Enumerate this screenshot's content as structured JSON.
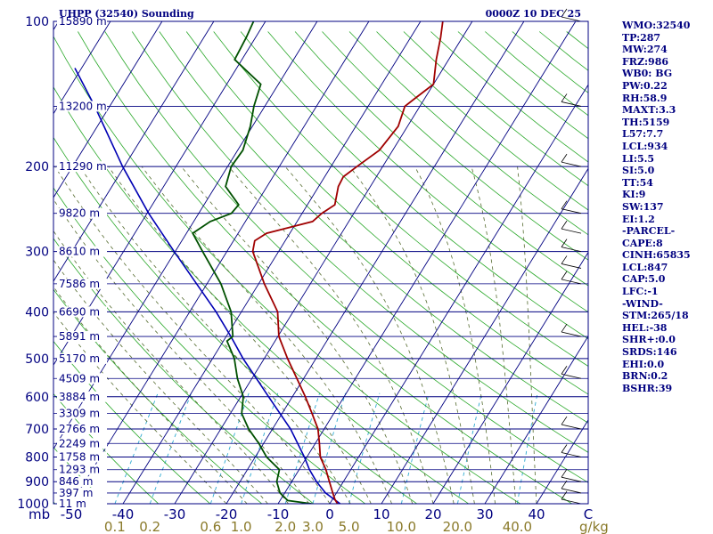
{
  "header": {
    "title": "UHPP (32540) Sounding",
    "time": "0000Z 10 DEC 25"
  },
  "units": {
    "pressure": "mb",
    "mixing_ratio": "g/kg"
  },
  "indices": [
    "WMO:32540",
    "TP:287",
    "MW:274",
    "FRZ:986",
    "WB0: BG",
    "PW:0.22",
    "RH:58.9",
    "MAXT:3.3",
    "TH:5159",
    "L57:7.7",
    "LCL:934",
    "LI:5.5",
    "SI:5.0",
    "TT:54",
    "KI:9",
    "SW:137",
    "EI:1.2",
    "-PARCEL-",
    "CAPE:8",
    "CINH:65835",
    "LCL:847",
    "CAP:5.0",
    "LFC:-1",
    "-WIND-",
    "STM:265/18",
    "HEL:-38",
    "SHR+:0.0",
    "SRDS:146",
    "EHI:0.0",
    "BRN:0.2",
    "BSHR:39"
  ],
  "chart_data": {
    "type": "skew-t log-p",
    "title": "UHPP (32540) Sounding",
    "pressure_levels": [
      100,
      200,
      300,
      400,
      500,
      600,
      700,
      800,
      900,
      1000
    ],
    "pressure_labels": [
      "100",
      "200",
      "300",
      "400",
      "500",
      "600",
      "700",
      "800",
      "900",
      "1000"
    ],
    "heights": [
      {
        "p": 100,
        "label": "15890 m"
      },
      {
        "p": 150,
        "label": "13200 m"
      },
      {
        "p": 200,
        "label": "11290 m"
      },
      {
        "p": 250,
        "label": "9820 m"
      },
      {
        "p": 300,
        "label": "8610 m"
      },
      {
        "p": 350,
        "label": "7586 m"
      },
      {
        "p": 400,
        "label": "6690 m"
      },
      {
        "p": 450,
        "label": "5891 m"
      },
      {
        "p": 500,
        "label": "5170 m"
      },
      {
        "p": 550,
        "label": "4509 m"
      },
      {
        "p": 600,
        "label": "3884 m"
      },
      {
        "p": 650,
        "label": "3309 m"
      },
      {
        "p": 700,
        "label": "2766 m"
      },
      {
        "p": 750,
        "label": "2249 m"
      },
      {
        "p": 800,
        "label": "1758 m"
      },
      {
        "p": 850,
        "label": "1293 m"
      },
      {
        "p": 900,
        "label": "846 m"
      },
      {
        "p": 950,
        "label": "397 m"
      },
      {
        "p": 1000,
        "label": "11 m"
      }
    ],
    "temperature_ticks": [
      -50,
      -40,
      -30,
      -20,
      -10,
      0,
      10,
      20,
      30,
      40
    ],
    "temperature_tick_labels": [
      "-50",
      "-40",
      "-30",
      "-20",
      "-10",
      "0",
      "10",
      "20",
      "30",
      "40",
      "C"
    ],
    "mixing_ratio_labels": [
      "0.1",
      "0.2",
      "0.6",
      "1.0",
      "2.0",
      "3.0",
      "5.0",
      "10.0",
      "20.0",
      "40.0"
    ],
    "mixing_ratios": [
      0.1,
      0.2,
      0.6,
      1.0,
      2.0,
      3.0,
      5.0,
      10.0,
      20.0,
      40.0
    ],
    "xlim": [
      -50,
      50
    ],
    "ylim": [
      1000,
      100
    ],
    "temperature": [
      {
        "p": 1000,
        "t": 1.5
      },
      {
        "p": 980,
        "t": 0.5
      },
      {
        "p": 950,
        "t": -0.7
      },
      {
        "p": 900,
        "t": -2.7
      },
      {
        "p": 850,
        "t": -4.8
      },
      {
        "p": 800,
        "t": -7.4
      },
      {
        "p": 750,
        "t": -9.2
      },
      {
        "p": 700,
        "t": -11.2
      },
      {
        "p": 650,
        "t": -14.2
      },
      {
        "p": 600,
        "t": -17.5
      },
      {
        "p": 550,
        "t": -21.3
      },
      {
        "p": 500,
        "t": -25.5
      },
      {
        "p": 450,
        "t": -29.8
      },
      {
        "p": 400,
        "t": -33.0
      },
      {
        "p": 350,
        "t": -38.9
      },
      {
        "p": 300,
        "t": -45.0
      },
      {
        "p": 285,
        "t": -45.9
      },
      {
        "p": 275,
        "t": -44.5
      },
      {
        "p": 260,
        "t": -37.0
      },
      {
        "p": 250,
        "t": -36.2
      },
      {
        "p": 240,
        "t": -34.7
      },
      {
        "p": 220,
        "t": -36.2
      },
      {
        "p": 210,
        "t": -36.4
      },
      {
        "p": 200,
        "t": -35.0
      },
      {
        "p": 185,
        "t": -32.6
      },
      {
        "p": 165,
        "t": -31.8
      },
      {
        "p": 150,
        "t": -32.9
      },
      {
        "p": 145,
        "t": -32.0
      },
      {
        "p": 135,
        "t": -30.0
      },
      {
        "p": 120,
        "t": -32.4
      },
      {
        "p": 108,
        "t": -34.2
      },
      {
        "p": 100,
        "t": -35.7
      }
    ],
    "dewpoint": [
      {
        "p": 1000,
        "t": -3.5
      },
      {
        "p": 985,
        "t": -8.5
      },
      {
        "p": 950,
        "t": -10.9
      },
      {
        "p": 900,
        "t": -12.9
      },
      {
        "p": 850,
        "t": -13.8
      },
      {
        "p": 800,
        "t": -17.8
      },
      {
        "p": 750,
        "t": -20.9
      },
      {
        "p": 700,
        "t": -24.6
      },
      {
        "p": 650,
        "t": -27.8
      },
      {
        "p": 600,
        "t": -29.5
      },
      {
        "p": 550,
        "t": -32.8
      },
      {
        "p": 500,
        "t": -35.8
      },
      {
        "p": 460,
        "t": -39.3
      },
      {
        "p": 450,
        "t": -38.7
      },
      {
        "p": 400,
        "t": -42.0
      },
      {
        "p": 350,
        "t": -47.3
      },
      {
        "p": 300,
        "t": -54.7
      },
      {
        "p": 275,
        "t": -58.8
      },
      {
        "p": 260,
        "t": -56.8
      },
      {
        "p": 250,
        "t": -53.7
      },
      {
        "p": 240,
        "t": -53.3
      },
      {
        "p": 220,
        "t": -58.0
      },
      {
        "p": 200,
        "t": -59.3
      },
      {
        "p": 185,
        "t": -59.0
      },
      {
        "p": 165,
        "t": -60.4
      },
      {
        "p": 150,
        "t": -62.1
      },
      {
        "p": 135,
        "t": -63.4
      },
      {
        "p": 120,
        "t": -71.4
      },
      {
        "p": 108,
        "t": -71.8
      },
      {
        "p": 100,
        "t": -72.3
      }
    ],
    "parcel": [
      {
        "p": 1000,
        "t": 2.0
      },
      {
        "p": 950,
        "t": -2.1
      },
      {
        "p": 900,
        "t": -5.2
      },
      {
        "p": 850,
        "t": -8.0
      },
      {
        "p": 800,
        "t": -10.5
      },
      {
        "p": 700,
        "t": -16.5
      },
      {
        "p": 600,
        "t": -24.6
      },
      {
        "p": 500,
        "t": -34.1
      },
      {
        "p": 450,
        "t": -39.1
      },
      {
        "p": 400,
        "t": -44.9
      },
      {
        "p": 350,
        "t": -52.0
      },
      {
        "p": 300,
        "t": -60.2
      },
      {
        "p": 250,
        "t": -69.7
      },
      {
        "p": 200,
        "t": -80.3
      },
      {
        "p": 150,
        "t": -92.9
      },
      {
        "p": 125,
        "t": -101.3
      }
    ],
    "wind_levels": [
      100,
      150,
      200,
      250,
      275,
      300,
      325,
      350,
      450,
      550,
      700,
      800,
      900,
      950,
      1000
    ],
    "colors": {
      "isobar": "#000080",
      "isotherm": "#000080",
      "dry_adiabat": "#2aa82a",
      "moist_adiabat": "#556b2f",
      "mixing_ratio": "#2eaad0",
      "temperature": "#a00000",
      "dewpoint": "#005000",
      "parcel": "#0000b4"
    }
  }
}
